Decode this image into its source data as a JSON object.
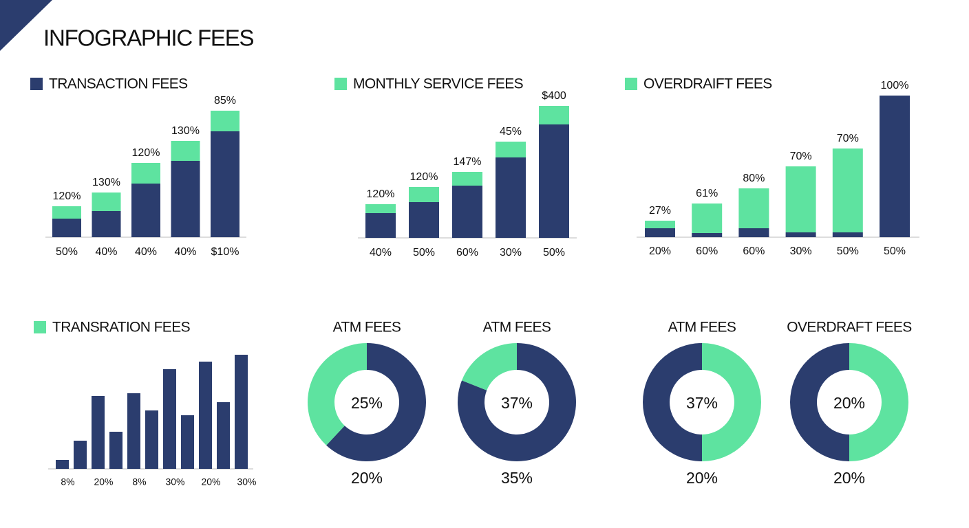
{
  "title": "INFOGRAPHIC FEES",
  "chart_data": [
    {
      "type": "stacked_bar",
      "legend_label": "TRANSACTION FEES",
      "legend_color": "#2b3d6e",
      "categories": [
        "50%",
        "40%",
        "40%",
        "40%",
        "$10%"
      ],
      "annotations": [
        "120%",
        "130%",
        "120%",
        "130%",
        "85%"
      ],
      "ylim": [
        0,
        210
      ],
      "series": [
        {
          "color": "#2b3d6e",
          "values": [
            27,
            38,
            78,
            111,
            154
          ]
        },
        {
          "color": "#5ee3a0",
          "values": [
            18,
            27,
            30,
            29,
            30
          ]
        }
      ]
    },
    {
      "type": "stacked_bar",
      "legend_label": "MONTHLY SERVICE FEES",
      "legend_color": "#5ee3a0",
      "categories": [
        "40%",
        "50%",
        "60%",
        "30%",
        "50%"
      ],
      "annotations": [
        "120%",
        "120%",
        "147%",
        "45%",
        "$400"
      ],
      "ylim": [
        0,
        210
      ],
      "series": [
        {
          "color": "#2b3d6e",
          "values": [
            36,
            52,
            76,
            117,
            165
          ]
        },
        {
          "color": "#5ee3a0",
          "values": [
            13,
            22,
            20,
            23,
            27
          ]
        }
      ]
    },
    {
      "type": "stacked_bar",
      "legend_label": "OVERDRAIFT FEES",
      "legend_color": "#5ee3a0",
      "categories": [
        "20%",
        "60%",
        "60%",
        "30%",
        "50%",
        "50%"
      ],
      "annotations": [
        "27%",
        "61%",
        "80%",
        "70%",
        "70%",
        "100%"
      ],
      "ylim": [
        0,
        210
      ],
      "series": [
        {
          "color": "#2b3d6e",
          "values": [
            13,
            6,
            13,
            7,
            7,
            206
          ]
        },
        {
          "color": "#5ee3a0",
          "values": [
            11,
            43,
            58,
            96,
            122,
            0
          ]
        }
      ]
    },
    {
      "type": "bar",
      "legend_label": "TRANSRATION FEES",
      "legend_color": "#5ee3a0",
      "categories": [
        "8%",
        null,
        "20%",
        null,
        "8%",
        null,
        "30%",
        null,
        "20%",
        null,
        "30%"
      ],
      "ylim": [
        0,
        210
      ],
      "color": "#2b3d6e",
      "values": [
        13,
        41,
        106,
        54,
        110,
        85,
        145,
        78,
        156,
        97,
        166
      ]
    },
    {
      "type": "donut",
      "title": "ATM FEES",
      "center_label": "25%",
      "bottom_label": "20%",
      "slices": [
        {
          "color": "#2b3d6e",
          "value": 62
        },
        {
          "color": "#5ee3a0",
          "value": 38
        }
      ]
    },
    {
      "type": "donut",
      "title": "ATM FEES",
      "center_label": "37%",
      "bottom_label": "35%",
      "slices": [
        {
          "color": "#2b3d6e",
          "value": 81
        },
        {
          "color": "#5ee3a0",
          "value": 19
        }
      ]
    },
    {
      "type": "donut",
      "title": "ATM FEES",
      "center_label": "37%",
      "bottom_label": "20%",
      "slices": [
        {
          "color": "#5ee3a0",
          "value": 50
        },
        {
          "color": "#2b3d6e",
          "value": 50
        }
      ]
    },
    {
      "type": "donut",
      "title": "OVERDRAFT FEES",
      "center_label": "20%",
      "bottom_label": "20%",
      "slices": [
        {
          "color": "#5ee3a0",
          "value": 50
        },
        {
          "color": "#2b3d6e",
          "value": 50
        }
      ]
    }
  ]
}
